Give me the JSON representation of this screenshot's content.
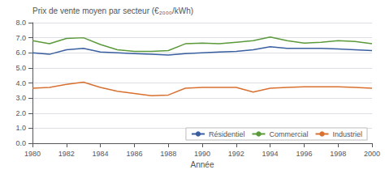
{
  "chart_data": {
    "type": "line",
    "xlabel": "Année",
    "ylabel": "Prix de vente moyen par secteur (€₂₀₀₀/kWh)",
    "x": [
      1980,
      1981,
      1982,
      1983,
      1984,
      1985,
      1986,
      1987,
      1988,
      1989,
      1990,
      1991,
      1992,
      1993,
      1994,
      1995,
      1996,
      1997,
      1998,
      1999,
      2000
    ],
    "series": [
      {
        "name": "Résidentiel",
        "color": "#3a5fa0",
        "values": [
          6.0,
          5.9,
          6.2,
          6.3,
          6.05,
          6.0,
          5.95,
          5.9,
          5.85,
          5.95,
          6.0,
          6.05,
          6.1,
          6.2,
          6.4,
          6.3,
          6.3,
          6.3,
          6.25,
          6.2,
          6.15
        ]
      },
      {
        "name": "Commercial",
        "color": "#5a9a3a",
        "values": [
          6.8,
          6.6,
          6.95,
          7.0,
          6.55,
          6.2,
          6.1,
          6.1,
          6.15,
          6.6,
          6.65,
          6.6,
          6.7,
          6.8,
          7.05,
          6.8,
          6.65,
          6.7,
          6.8,
          6.75,
          6.6
        ]
      },
      {
        "name": "Industriel",
        "color": "#d87030",
        "values": [
          3.65,
          3.7,
          3.9,
          4.05,
          3.7,
          3.45,
          3.3,
          3.15,
          3.2,
          3.65,
          3.7,
          3.7,
          3.7,
          3.4,
          3.65,
          3.7,
          3.75,
          3.75,
          3.75,
          3.7,
          3.65
        ]
      }
    ],
    "xlim": [
      1980,
      2000
    ],
    "xticks": [
      1980,
      1982,
      1984,
      1986,
      1988,
      1990,
      1992,
      1994,
      1996,
      1998,
      2000
    ],
    "ylim": [
      0.0,
      8.0
    ],
    "yticks": [
      {
        "value": 0,
        "label": "0.0"
      },
      {
        "value": 1,
        "label": "1.0"
      },
      {
        "value": 2,
        "label": "2.0"
      },
      {
        "value": 3,
        "label": "3.0"
      },
      {
        "value": 4,
        "label": "4.0"
      },
      {
        "value": 5,
        "label": "5.0"
      },
      {
        "value": 6,
        "label": "6.0"
      },
      {
        "value": 7,
        "label": "7.0"
      },
      {
        "value": 8,
        "label": "8.0"
      }
    ],
    "grid": true,
    "legend": "lower right"
  }
}
